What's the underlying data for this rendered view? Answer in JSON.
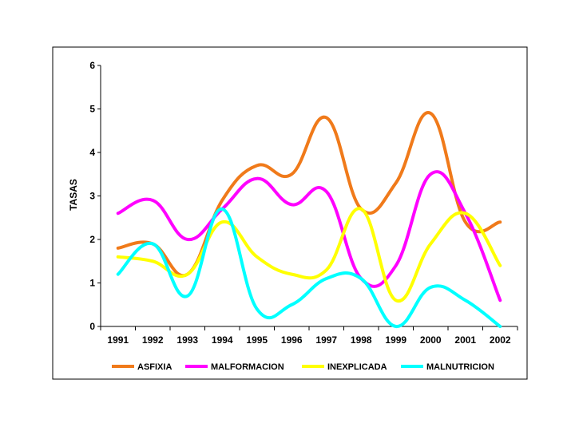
{
  "chart_data": {
    "type": "line",
    "title": "",
    "xlabel": "",
    "ylabel": "TASAS",
    "ylim": [
      0,
      6
    ],
    "yticks": [
      0,
      1,
      2,
      3,
      4,
      5,
      6
    ],
    "categories": [
      "1991",
      "1992",
      "1993",
      "1994",
      "1995",
      "1996",
      "1997",
      "1998",
      "1999",
      "2000",
      "2001",
      "2002"
    ],
    "grid": false,
    "smooth": true,
    "legend_position": "bottom",
    "series": [
      {
        "name": "ASFIXIA",
        "color": "#f07a1a",
        "values": [
          1.8,
          1.9,
          1.2,
          2.9,
          3.7,
          3.5,
          4.8,
          2.7,
          3.3,
          4.9,
          2.4,
          2.4
        ]
      },
      {
        "name": "MALFORMACION",
        "color": "#ff00ff",
        "values": [
          2.6,
          2.9,
          2.0,
          2.7,
          3.4,
          2.8,
          3.1,
          1.1,
          1.4,
          3.5,
          2.6,
          0.6
        ]
      },
      {
        "name": "INEXPLICADA",
        "color": "#ffff00",
        "values": [
          1.6,
          1.5,
          1.2,
          2.4,
          1.6,
          1.2,
          1.3,
          2.7,
          0.6,
          1.9,
          2.6,
          1.4
        ]
      },
      {
        "name": "MALNUTRICION",
        "color": "#00ffff",
        "values": [
          1.2,
          1.9,
          0.7,
          2.7,
          0.4,
          0.5,
          1.1,
          1.1,
          0.0,
          0.9,
          0.6,
          0.0
        ]
      }
    ]
  }
}
